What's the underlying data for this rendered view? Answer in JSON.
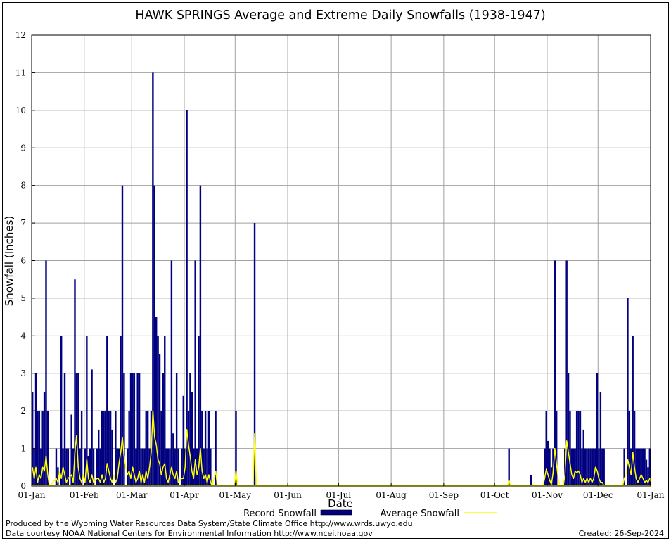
{
  "chart_data": {
    "type": "bar",
    "title": "HAWK SPRINGS Average and Extreme Daily Snowfalls (1938-1947)",
    "xlabel": "Date",
    "ylabel": "Snowfall (Inches)",
    "ylim": [
      0,
      12
    ],
    "y_ticks": [
      "0",
      "1",
      "2",
      "3",
      "4",
      "5",
      "6",
      "7",
      "8",
      "9",
      "10",
      "11",
      "12"
    ],
    "x_ticks": [
      "01-Jan",
      "01-Feb",
      "01-Mar",
      "01-Apr",
      "01-May",
      "01-Jun",
      "01-Jul",
      "01-Aug",
      "01-Sep",
      "01-Oct",
      "01-Nov",
      "01-Dec",
      "01-Jan"
    ],
    "x_tick_days": [
      0,
      31,
      59,
      90,
      120,
      151,
      181,
      212,
      243,
      273,
      304,
      334,
      365
    ],
    "grid": true,
    "colors": {
      "record": "#000080",
      "average": "#ffff00"
    },
    "series": [
      {
        "name": "Record Snowfall",
        "kind": "bar",
        "points": [
          [
            0,
            2.5
          ],
          [
            1,
            1
          ],
          [
            2,
            3
          ],
          [
            3,
            2
          ],
          [
            4,
            2
          ],
          [
            5,
            1
          ],
          [
            6,
            2
          ],
          [
            7,
            2.5
          ],
          [
            8,
            6
          ],
          [
            9,
            2
          ],
          [
            14,
            1
          ],
          [
            15,
            0.5
          ],
          [
            17,
            4
          ],
          [
            18,
            1
          ],
          [
            19,
            3
          ],
          [
            20,
            1
          ],
          [
            21,
            1
          ],
          [
            23,
            1.9
          ],
          [
            24,
            1
          ],
          [
            25,
            5.5
          ],
          [
            26,
            3
          ],
          [
            27,
            3
          ],
          [
            28,
            1
          ],
          [
            29,
            2
          ],
          [
            31,
            1
          ],
          [
            32,
            4
          ],
          [
            33,
            0.8
          ],
          [
            34,
            1
          ],
          [
            35,
            3.1
          ],
          [
            36,
            1
          ],
          [
            38,
            1
          ],
          [
            39,
            1.5
          ],
          [
            40,
            1
          ],
          [
            41,
            2
          ],
          [
            42,
            2
          ],
          [
            43,
            2
          ],
          [
            44,
            4
          ],
          [
            45,
            2
          ],
          [
            46,
            2
          ],
          [
            47,
            1.5
          ],
          [
            49,
            2
          ],
          [
            50,
            1
          ],
          [
            51,
            1
          ],
          [
            52,
            4
          ],
          [
            53,
            8
          ],
          [
            54,
            3
          ],
          [
            56,
            1
          ],
          [
            57,
            2
          ],
          [
            58,
            3
          ],
          [
            59,
            3
          ],
          [
            60,
            3
          ],
          [
            61,
            1
          ],
          [
            62,
            3
          ],
          [
            63,
            3
          ],
          [
            64,
            1
          ],
          [
            65,
            1
          ],
          [
            66,
            1
          ],
          [
            67,
            2
          ],
          [
            68,
            2
          ],
          [
            69,
            1
          ],
          [
            70,
            2
          ],
          [
            71,
            11
          ],
          [
            72,
            8
          ],
          [
            73,
            4.5
          ],
          [
            74,
            4
          ],
          [
            75,
            3.5
          ],
          [
            76,
            2
          ],
          [
            77,
            3
          ],
          [
            78,
            4
          ],
          [
            79,
            1
          ],
          [
            80,
            1
          ],
          [
            81,
            1
          ],
          [
            82,
            6
          ],
          [
            83,
            1.4
          ],
          [
            84,
            1
          ],
          [
            85,
            3
          ],
          [
            86,
            1
          ],
          [
            88,
            1
          ],
          [
            89,
            2.4
          ],
          [
            90,
            1
          ],
          [
            91,
            10
          ],
          [
            92,
            2
          ],
          [
            93,
            3
          ],
          [
            94,
            2.5
          ],
          [
            95,
            1
          ],
          [
            96,
            6
          ],
          [
            97,
            1
          ],
          [
            98,
            4
          ],
          [
            99,
            8
          ],
          [
            100,
            2
          ],
          [
            101,
            1
          ],
          [
            102,
            2
          ],
          [
            103,
            1
          ],
          [
            104,
            2
          ],
          [
            105,
            1
          ],
          [
            108,
            2
          ],
          [
            120,
            2
          ],
          [
            131,
            7
          ],
          [
            281,
            1
          ],
          [
            294,
            0.3
          ],
          [
            302,
            1
          ],
          [
            303,
            2
          ],
          [
            304,
            1.2
          ],
          [
            305,
            1
          ],
          [
            306,
            0.5
          ],
          [
            307,
            1
          ],
          [
            308,
            6
          ],
          [
            309,
            2
          ],
          [
            314,
            1
          ],
          [
            315,
            6
          ],
          [
            316,
            3
          ],
          [
            317,
            2
          ],
          [
            318,
            1
          ],
          [
            319,
            1
          ],
          [
            320,
            1
          ],
          [
            321,
            2
          ],
          [
            322,
            2
          ],
          [
            323,
            2
          ],
          [
            324,
            1
          ],
          [
            325,
            1.5
          ],
          [
            326,
            1
          ],
          [
            327,
            1
          ],
          [
            328,
            1
          ],
          [
            329,
            1
          ],
          [
            330,
            1
          ],
          [
            331,
            1
          ],
          [
            332,
            1
          ],
          [
            333,
            3
          ],
          [
            334,
            1
          ],
          [
            335,
            2.5
          ],
          [
            336,
            1
          ],
          [
            337,
            1
          ],
          [
            349,
            1
          ],
          [
            351,
            5
          ],
          [
            352,
            2
          ],
          [
            353,
            1
          ],
          [
            354,
            4
          ],
          [
            355,
            2
          ],
          [
            356,
            1
          ],
          [
            357,
            1
          ],
          [
            358,
            1
          ],
          [
            359,
            1
          ],
          [
            360,
            1
          ],
          [
            361,
            1
          ],
          [
            362,
            0.7
          ],
          [
            363,
            0.5
          ],
          [
            364,
            1
          ],
          [
            365,
            1
          ]
        ]
      },
      {
        "name": "Average Snowfall",
        "kind": "line",
        "points": [
          [
            0,
            0.5
          ],
          [
            1,
            0.2
          ],
          [
            2,
            0.5
          ],
          [
            3,
            0.1
          ],
          [
            4,
            0.3
          ],
          [
            5,
            0.2
          ],
          [
            6,
            0.5
          ],
          [
            7,
            0.4
          ],
          [
            8,
            0.8
          ],
          [
            9,
            0.3
          ],
          [
            10,
            0
          ],
          [
            14,
            0.2
          ],
          [
            15,
            0.1
          ],
          [
            16,
            0.4
          ],
          [
            17,
            0.2
          ],
          [
            18,
            0.5
          ],
          [
            19,
            0.3
          ],
          [
            20,
            0.1
          ],
          [
            21,
            0.2
          ],
          [
            23,
            0.3
          ],
          [
            24,
            0.1
          ],
          [
            25,
            0.9
          ],
          [
            26,
            1.35
          ],
          [
            27,
            0.5
          ],
          [
            28,
            0.2
          ],
          [
            29,
            0.1
          ],
          [
            30,
            0.3
          ],
          [
            31,
            0.1
          ],
          [
            32,
            0.7
          ],
          [
            33,
            0.2
          ],
          [
            34,
            0.1
          ],
          [
            35,
            0.3
          ],
          [
            36,
            0.1
          ],
          [
            38,
            0.2
          ],
          [
            39,
            0.2
          ],
          [
            40,
            0.1
          ],
          [
            41,
            0.3
          ],
          [
            42,
            0.1
          ],
          [
            43,
            0.2
          ],
          [
            44,
            0.6
          ],
          [
            45,
            0.4
          ],
          [
            46,
            0.2
          ],
          [
            47,
            0.1
          ],
          [
            48,
            0.3
          ],
          [
            49,
            0.1
          ],
          [
            50,
            0.2
          ],
          [
            51,
            0.6
          ],
          [
            52,
            0.9
          ],
          [
            53,
            1.3
          ],
          [
            54,
            0.8
          ],
          [
            55,
            0.5
          ],
          [
            56,
            0.3
          ],
          [
            57,
            0.4
          ],
          [
            58,
            0.2
          ],
          [
            59,
            0.5
          ],
          [
            60,
            0.3
          ],
          [
            61,
            0.1
          ],
          [
            62,
            0.2
          ],
          [
            63,
            0.4
          ],
          [
            64,
            0.1
          ],
          [
            65,
            0.3
          ],
          [
            66,
            0.1
          ],
          [
            67,
            0.4
          ],
          [
            68,
            0.2
          ],
          [
            69,
            0.5
          ],
          [
            70,
            0.9
          ],
          [
            71,
            2
          ],
          [
            72,
            1.3
          ],
          [
            73,
            1.1
          ],
          [
            74,
            0.7
          ],
          [
            75,
            0.6
          ],
          [
            76,
            0.3
          ],
          [
            77,
            0.5
          ],
          [
            78,
            0.6
          ],
          [
            79,
            0.2
          ],
          [
            80,
            0.1
          ],
          [
            81,
            0.3
          ],
          [
            82,
            0.5
          ],
          [
            83,
            0.3
          ],
          [
            84,
            0.2
          ],
          [
            85,
            0.4
          ],
          [
            86,
            0.1
          ],
          [
            88,
            0.2
          ],
          [
            89,
            0.2
          ],
          [
            90,
            0.5
          ],
          [
            91,
            1.5
          ],
          [
            92,
            1.1
          ],
          [
            93,
            0.8
          ],
          [
            94,
            0.4
          ],
          [
            95,
            0.2
          ],
          [
            96,
            0.7
          ],
          [
            97,
            0.3
          ],
          [
            98,
            0.5
          ],
          [
            99,
            1
          ],
          [
            100,
            0.4
          ],
          [
            101,
            0.2
          ],
          [
            102,
            0.3
          ],
          [
            103,
            0.1
          ],
          [
            104,
            0.3
          ],
          [
            105,
            0.1
          ],
          [
            106,
            0
          ],
          [
            108,
            0.4
          ],
          [
            109,
            0
          ],
          [
            119,
            0
          ],
          [
            120,
            0.4
          ],
          [
            121,
            0
          ],
          [
            130,
            0
          ],
          [
            131,
            1.4
          ],
          [
            132,
            0
          ],
          [
            280,
            0
          ],
          [
            281,
            0.15
          ],
          [
            282,
            0
          ],
          [
            294,
            0
          ],
          [
            295,
            0.05
          ],
          [
            296,
            0
          ],
          [
            301,
            0
          ],
          [
            302,
            0.2
          ],
          [
            303,
            0.45
          ],
          [
            304,
            0.3
          ],
          [
            305,
            0.15
          ],
          [
            306,
            0.05
          ],
          [
            307,
            0.35
          ],
          [
            308,
            1
          ],
          [
            309,
            0.6
          ],
          [
            310,
            0.2
          ],
          [
            311,
            0
          ],
          [
            313,
            0
          ],
          [
            314,
            0.3
          ],
          [
            315,
            1.2
          ],
          [
            316,
            0.9
          ],
          [
            317,
            0.6
          ],
          [
            318,
            0.3
          ],
          [
            319,
            0.2
          ],
          [
            320,
            0.4
          ],
          [
            321,
            0.35
          ],
          [
            322,
            0.4
          ],
          [
            323,
            0.3
          ],
          [
            324,
            0.1
          ],
          [
            325,
            0.2
          ],
          [
            326,
            0.1
          ],
          [
            327,
            0.2
          ],
          [
            328,
            0.1
          ],
          [
            329,
            0.2
          ],
          [
            330,
            0.1
          ],
          [
            331,
            0.2
          ],
          [
            332,
            0.5
          ],
          [
            333,
            0.4
          ],
          [
            334,
            0.2
          ],
          [
            335,
            0.1
          ],
          [
            336,
            0.1
          ],
          [
            337,
            0
          ],
          [
            348,
            0
          ],
          [
            349,
            0.2
          ],
          [
            350,
            0.3
          ],
          [
            351,
            0.7
          ],
          [
            352,
            0.5
          ],
          [
            353,
            0.3
          ],
          [
            354,
            0.9
          ],
          [
            355,
            0.5
          ],
          [
            356,
            0.2
          ],
          [
            357,
            0.1
          ],
          [
            358,
            0.2
          ],
          [
            359,
            0.3
          ],
          [
            360,
            0.2
          ],
          [
            361,
            0.1
          ],
          [
            362,
            0.15
          ],
          [
            363,
            0.1
          ],
          [
            364,
            0.2
          ],
          [
            365,
            0.05
          ]
        ]
      }
    ]
  },
  "legend": {
    "record_label": "Record Snowfall",
    "average_label": "Average Snowfall"
  },
  "footer": {
    "line1": "Produced by the Wyoming Water Resources Data System/State Climate Office http://www.wrds.uwyo.edu",
    "line2": "Data courtesy NOAA National Centers for Environmental Information http://www.ncei.noaa.gov",
    "created": "Created:  26-Sep-2024"
  }
}
